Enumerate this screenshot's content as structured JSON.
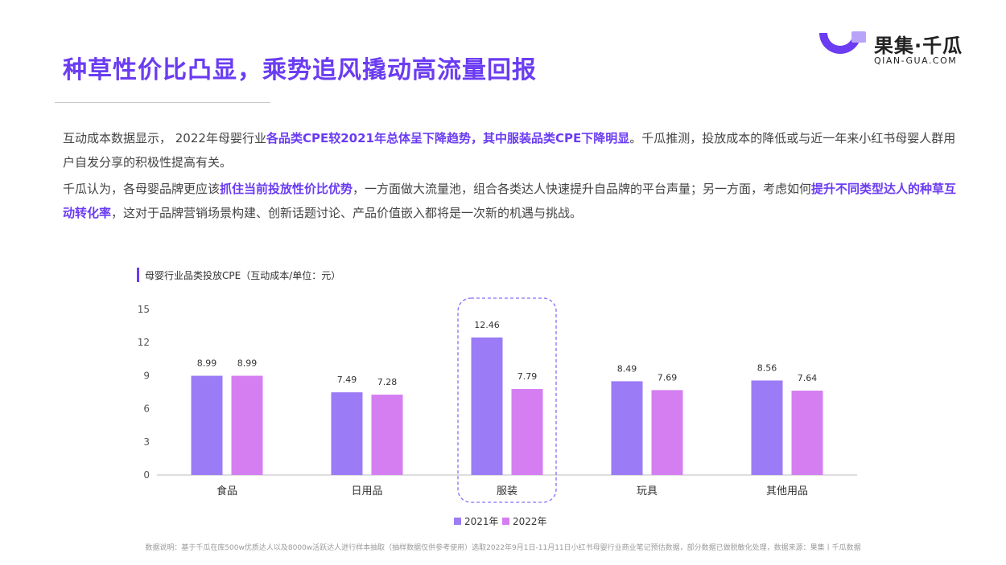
{
  "title": "种草性价比凸显，乘势追风撬动高流量回报",
  "logo": {
    "name": "果集·千瓜",
    "url": "QIAN-GUA.COM"
  },
  "paragraph1": {
    "p1": "互动成本数据显示， 2022年母婴行业",
    "h1": "各品类CPE较2021年总体呈下降趋势，其中服装品类CPE下降明显",
    "p2": "。千瓜推测，投放成本的降低或与近一年来小红书母婴人群用户自发分享的积极性提高有关。"
  },
  "paragraph2": {
    "p1": "千瓜认为，各母婴品牌更应该",
    "h1": "抓住当前投放性价比优势",
    "p2": "，一方面做大流量池，组合各类达人快速提升自品牌的平台声量；另一方面，考虑如何",
    "h2": "提升不同类型达人的种草互动转化率",
    "p3": "，这对于品牌营销场景构建、创新话题讨论、产品价值嵌入都将是一次新的机遇与挑战。"
  },
  "chart_title": "母婴行业品类投放CPE（互动成本/单位：元）",
  "chart_data": {
    "type": "bar",
    "title": "母婴行业品类投放CPE（互动成本/单位：元）",
    "categories": [
      "食品",
      "日用品",
      "服装",
      "玩具",
      "其他用品"
    ],
    "series": [
      {
        "name": "2021年",
        "values": [
          8.99,
          7.49,
          12.46,
          8.49,
          8.56
        ],
        "color": "#9b7bf6"
      },
      {
        "name": "2022年",
        "values": [
          8.99,
          7.28,
          7.79,
          7.69,
          7.64
        ],
        "color": "#d47ef2"
      }
    ],
    "y_ticks": [
      "0",
      "3",
      "6",
      "9",
      "12",
      "15"
    ],
    "ylim": [
      0,
      15
    ],
    "highlight_category": "服装",
    "legend_position": "bottom",
    "grid": false
  },
  "footnote": "数据说明：基于千瓜在库500w优质达人以及8000w活跃达人进行样本抽取（抽样数据仅供参考使用）选取2022年9月1日-11月11日小红书母婴行业商业笔记预估数据，部分数据已做脱敏化处理，数据来源：果集丨千瓜数据"
}
